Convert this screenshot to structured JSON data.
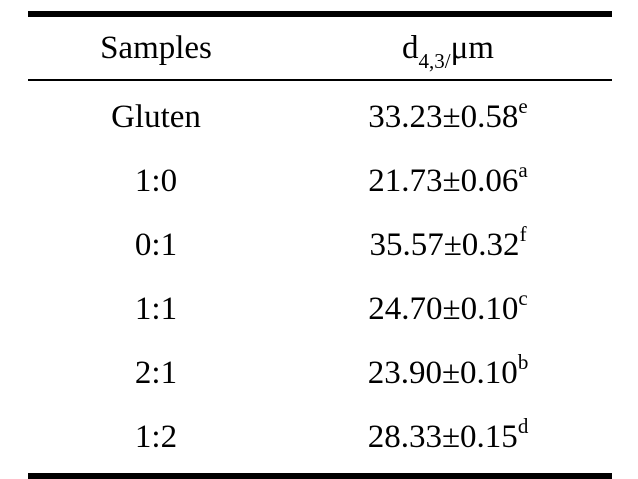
{
  "table": {
    "headers": {
      "samples": "Samples",
      "d_main": "d",
      "d_sub": "4,3/",
      "d_unit": "μm"
    },
    "rows": [
      {
        "sample": "Gluten",
        "value": "33.23±0.58",
        "sup": "e"
      },
      {
        "sample": "1:0",
        "value": "21.73±0.06",
        "sup": "a"
      },
      {
        "sample": "0:1",
        "value": "35.57±0.32",
        "sup": "f"
      },
      {
        "sample": "1:1",
        "value": "24.70±0.10",
        "sup": "c"
      },
      {
        "sample": "2:1",
        "value": "23.90±0.10",
        "sup": "b"
      },
      {
        "sample": "1:2",
        "value": "28.33±0.15",
        "sup": "d"
      }
    ]
  }
}
